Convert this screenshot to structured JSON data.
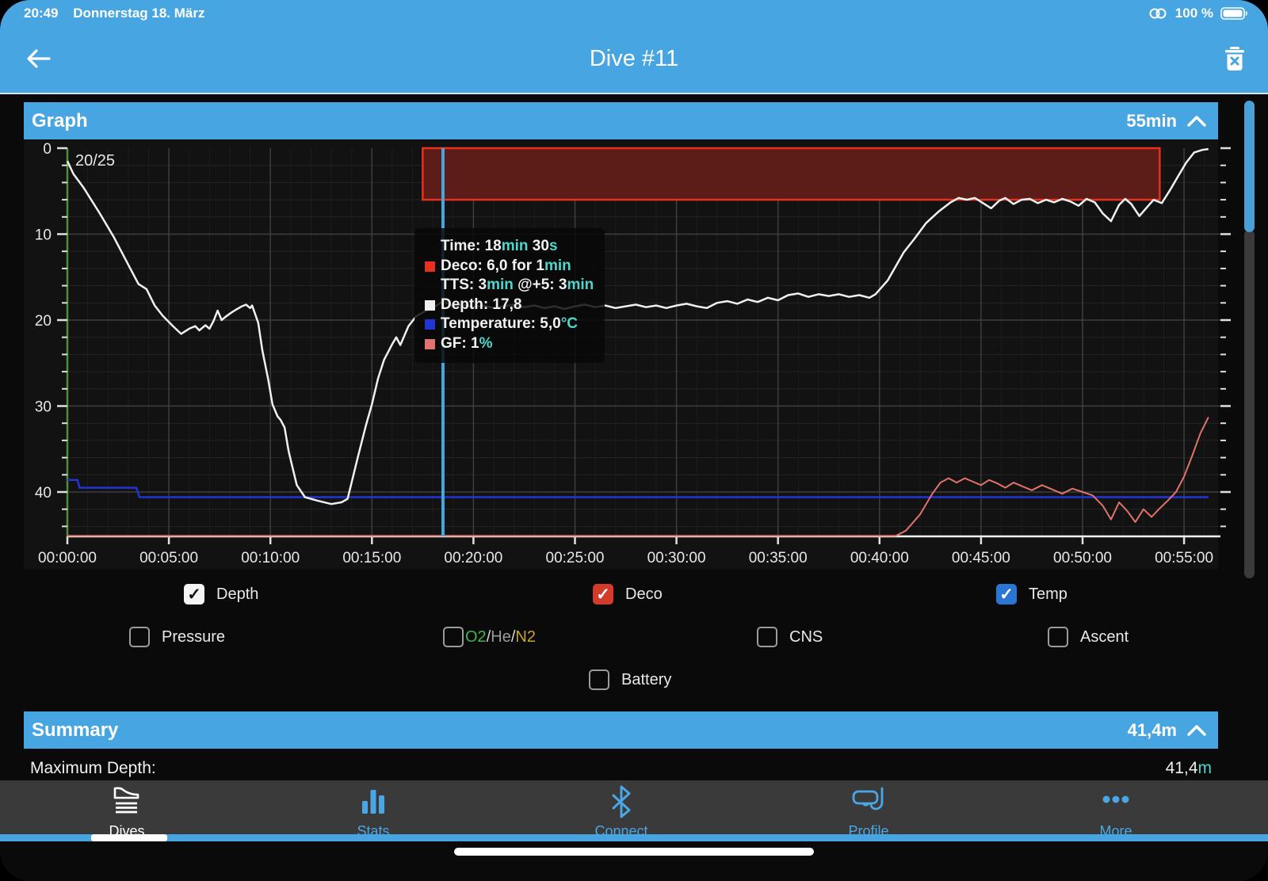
{
  "status_bar": {
    "time": "20:49",
    "date": "Donnerstag 18. März",
    "battery_label": "100 %"
  },
  "nav": {
    "title": "Dive #11"
  },
  "graph_panel": {
    "title": "Graph",
    "duration": "55min"
  },
  "summary_panel": {
    "title": "Summary",
    "value": "41,4m"
  },
  "summary_rows": [
    {
      "label": "Maximum Depth:",
      "value": "41,4",
      "unit": "m"
    }
  ],
  "tooltip": {
    "lines": [
      {
        "bullet": null,
        "indent": false,
        "parts": [
          [
            "Time: 18",
            "w"
          ],
          [
            "min",
            "c"
          ],
          [
            " 30",
            "w"
          ],
          [
            "s",
            "c"
          ]
        ]
      },
      {
        "bullet": "#e8301e",
        "indent": false,
        "parts": [
          [
            "Deco: 6,0 for 1",
            "w"
          ],
          [
            "min",
            "c"
          ]
        ]
      },
      {
        "bullet": null,
        "indent": true,
        "parts": [
          [
            "TTS: 3",
            "w"
          ],
          [
            "min",
            "c"
          ],
          [
            " @+5:  3",
            "w"
          ],
          [
            "min",
            "c"
          ]
        ]
      },
      {
        "bullet": "#f0f0f0",
        "indent": false,
        "parts": [
          [
            "Depth: 17,8",
            "w"
          ]
        ]
      },
      {
        "bullet": "#2135d4",
        "indent": false,
        "parts": [
          [
            "Temperature: 5,0",
            "w"
          ],
          [
            "°C",
            "c"
          ]
        ]
      },
      {
        "bullet": "#e0736b",
        "indent": false,
        "parts": [
          [
            "GF: 1",
            "w"
          ],
          [
            "%",
            "c"
          ]
        ]
      }
    ]
  },
  "legend": [
    {
      "id": "depth",
      "label": "Depth",
      "checked": true,
      "style": "white"
    },
    {
      "id": "deco",
      "label": "Deco",
      "checked": true,
      "style": "red"
    },
    {
      "id": "temp",
      "label": "Temp",
      "checked": true,
      "style": "blue"
    },
    {
      "id": "pressure",
      "label": "Pressure",
      "checked": false,
      "style": "off"
    },
    {
      "id": "gas",
      "label_parts": [
        [
          "O2",
          "#43b54a"
        ],
        [
          "/",
          "#d8d8d8"
        ],
        [
          "He",
          "#9a9a9a"
        ],
        [
          "/",
          "#d8d8d8"
        ],
        [
          "N2",
          "#c7a52c"
        ]
      ],
      "checked": false,
      "style": "off"
    },
    {
      "id": "cns",
      "label": "CNS",
      "checked": false,
      "style": "off"
    },
    {
      "id": "ascent",
      "label": "Ascent",
      "checked": false,
      "style": "off"
    },
    {
      "id": "battery",
      "label": "Battery",
      "checked": false,
      "style": "off"
    }
  ],
  "tab_bar": {
    "tabs": [
      {
        "id": "dives",
        "label": "Dives",
        "active": true
      },
      {
        "id": "stats",
        "label": "Stats",
        "active": false
      },
      {
        "id": "connect",
        "label": "Connect",
        "active": false
      },
      {
        "id": "profile",
        "label": "Profile",
        "active": false
      },
      {
        "id": "more",
        "label": "More",
        "active": false
      }
    ]
  },
  "chart_data": {
    "type": "line",
    "title": "Dive profile graph",
    "gas_label": "20/25",
    "x_axis": {
      "unit": "min",
      "min": 0,
      "max": 56.6,
      "major_tick_min": 5
    },
    "y_axis": {
      "unit": "m",
      "min": 0,
      "max": 45.2,
      "inverted": true,
      "major_tick_m": 10,
      "minor_tick_m": 2
    },
    "x_tick_labels": [
      "00:00:00",
      "00:05:00",
      "00:10:00",
      "00:15:00",
      "00:20:00",
      "00:25:00",
      "00:30:00",
      "00:35:00",
      "00:40:00",
      "00:45:00",
      "00:50:00",
      "00:55:00"
    ],
    "y_tick_labels": [
      0,
      10,
      20,
      30,
      40
    ],
    "cursor_min": 18.5,
    "deco_ceiling_band": {
      "start_min": 17.5,
      "end_min": 53.8,
      "depth_from_m": 0,
      "depth_to_m": 6
    },
    "colors": {
      "depth": "#f0f0f0",
      "temperature": "#2135d4",
      "gf": "#e0736b",
      "deco_fill": "#5c1c17",
      "deco_border": "#e8301e",
      "cursor": "#47a5e2",
      "y_axis_line": "#4e8f3c",
      "x_axis_line": "#f5f5f5",
      "grid_major": "#3e3e3e",
      "grid_minor_h": "#242424",
      "grid_minor_v": "#1d1d1d"
    },
    "series": [
      {
        "name": "Depth",
        "unit": "m",
        "points": [
          [
            0,
            1.5
          ],
          [
            0.3,
            3
          ],
          [
            0.8,
            4.6
          ],
          [
            1.6,
            7.6
          ],
          [
            2.3,
            10.4
          ],
          [
            3.1,
            14
          ],
          [
            3.5,
            15.8
          ],
          [
            3.9,
            16.4
          ],
          [
            4.3,
            18.3
          ],
          [
            4.7,
            19.5
          ],
          [
            5.2,
            20.7
          ],
          [
            5.6,
            21.6
          ],
          [
            6,
            21
          ],
          [
            6.3,
            20.7
          ],
          [
            6.5,
            21.2
          ],
          [
            6.8,
            20.6
          ],
          [
            7,
            21
          ],
          [
            7.2,
            20.1
          ],
          [
            7.4,
            18.9
          ],
          [
            7.6,
            20
          ],
          [
            7.8,
            19.6
          ],
          [
            8.1,
            19.1
          ],
          [
            8.3,
            18.8
          ],
          [
            8.6,
            18.4
          ],
          [
            8.8,
            18.2
          ],
          [
            9,
            18.6
          ],
          [
            9.1,
            18.3
          ],
          [
            9.4,
            20.3
          ],
          [
            9.6,
            23.5
          ],
          [
            9.9,
            27
          ],
          [
            10.1,
            29.8
          ],
          [
            10.35,
            31.2
          ],
          [
            10.5,
            31.6
          ],
          [
            10.7,
            32.5
          ],
          [
            10.9,
            35.3
          ],
          [
            11.3,
            39.2
          ],
          [
            11.7,
            40.6
          ],
          [
            12.3,
            41
          ],
          [
            13,
            41.4
          ],
          [
            13.5,
            41.2
          ],
          [
            13.8,
            40.8
          ],
          [
            14.3,
            36
          ],
          [
            14.7,
            32.3
          ],
          [
            15,
            29.8
          ],
          [
            15.3,
            26.8
          ],
          [
            15.6,
            24.6
          ],
          [
            16,
            22.8
          ],
          [
            16.2,
            22
          ],
          [
            16.4,
            22.9
          ],
          [
            16.8,
            20.7
          ],
          [
            17.2,
            19.5
          ],
          [
            17.6,
            19
          ],
          [
            18,
            18.6
          ],
          [
            18.5,
            17.8
          ],
          [
            19,
            18.4
          ],
          [
            19.5,
            18.2
          ],
          [
            20,
            18.5
          ],
          [
            20.5,
            18.3
          ],
          [
            21,
            18.6
          ],
          [
            21.5,
            18.4
          ],
          [
            22,
            18.2
          ],
          [
            22.5,
            18.5
          ],
          [
            23,
            18.3
          ],
          [
            23.5,
            18.6
          ],
          [
            24,
            18.4
          ],
          [
            24.5,
            18.7
          ],
          [
            25,
            18.4
          ],
          [
            25.5,
            18.2
          ],
          [
            26,
            18.5
          ],
          [
            26.5,
            18.3
          ],
          [
            27,
            18.6
          ],
          [
            27.5,
            18.4
          ],
          [
            28,
            18.2
          ],
          [
            28.5,
            18.5
          ],
          [
            29,
            18.3
          ],
          [
            29.5,
            18.6
          ],
          [
            30,
            18.3
          ],
          [
            30.5,
            18.1
          ],
          [
            31,
            18.4
          ],
          [
            31.5,
            18.6
          ],
          [
            32,
            18
          ],
          [
            32.5,
            17.8
          ],
          [
            33,
            18.1
          ],
          [
            33.5,
            17.6
          ],
          [
            34,
            17.9
          ],
          [
            34.5,
            17.4
          ],
          [
            35,
            17.7
          ],
          [
            35.5,
            17.1
          ],
          [
            36,
            16.9
          ],
          [
            36.5,
            17.3
          ],
          [
            37,
            17
          ],
          [
            37.5,
            17.2
          ],
          [
            38,
            17
          ],
          [
            38.5,
            17.3
          ],
          [
            39,
            17.1
          ],
          [
            39.5,
            17.4
          ],
          [
            39.8,
            17
          ],
          [
            40.4,
            15.4
          ],
          [
            41.2,
            12.1
          ],
          [
            41.7,
            10.6
          ],
          [
            42.3,
            8.7
          ],
          [
            42.9,
            7.4
          ],
          [
            43.5,
            6.3
          ],
          [
            43.9,
            5.8
          ],
          [
            44.3,
            6
          ],
          [
            44.7,
            5.8
          ],
          [
            45.1,
            6.4
          ],
          [
            45.5,
            7
          ],
          [
            45.9,
            6.1
          ],
          [
            46.2,
            5.8
          ],
          [
            46.6,
            6.5
          ],
          [
            47,
            6
          ],
          [
            47.4,
            5.9
          ],
          [
            47.8,
            6.4
          ],
          [
            48.2,
            6
          ],
          [
            48.6,
            6.3
          ],
          [
            49,
            5.9
          ],
          [
            49.4,
            6.2
          ],
          [
            49.8,
            6.7
          ],
          [
            50.2,
            5.9
          ],
          [
            50.6,
            6.3
          ],
          [
            51,
            7.6
          ],
          [
            51.4,
            8.5
          ],
          [
            51.8,
            6.6
          ],
          [
            52.1,
            5.9
          ],
          [
            52.4,
            6.5
          ],
          [
            52.8,
            7.9
          ],
          [
            53.2,
            6.8
          ],
          [
            53.5,
            6
          ],
          [
            53.9,
            6.4
          ],
          [
            54.3,
            4.9
          ],
          [
            54.7,
            3.3
          ],
          [
            55.1,
            1.7
          ],
          [
            55.5,
            0.5
          ],
          [
            55.9,
            0.2
          ],
          [
            56.2,
            0.1
          ]
        ]
      },
      {
        "name": "Temperature",
        "unit": "°C",
        "value_at_cursor": "5,0°C",
        "plotted_on": "depth_scale_m",
        "points": [
          [
            0,
            38.6
          ],
          [
            0.5,
            38.6
          ],
          [
            0.6,
            39.5
          ],
          [
            3.4,
            39.5
          ],
          [
            3.55,
            40.6
          ],
          [
            56.2,
            40.6
          ]
        ]
      },
      {
        "name": "GF",
        "unit": "%",
        "value_at_cursor": "1%",
        "plotted_on": "depth_scale_m",
        "points": [
          [
            0,
            45.1
          ],
          [
            40.8,
            45.1
          ],
          [
            41.3,
            44.5
          ],
          [
            42,
            42.6
          ],
          [
            42.6,
            40.2
          ],
          [
            43,
            38.9
          ],
          [
            43.4,
            38.4
          ],
          [
            43.8,
            38.9
          ],
          [
            44.2,
            38.4
          ],
          [
            44.6,
            38.8
          ],
          [
            45,
            39.2
          ],
          [
            45.4,
            38.6
          ],
          [
            45.8,
            39
          ],
          [
            46.2,
            39.5
          ],
          [
            46.6,
            38.9
          ],
          [
            47,
            39.3
          ],
          [
            47.5,
            39.8
          ],
          [
            48,
            39.2
          ],
          [
            48.5,
            39.7
          ],
          [
            49,
            40.2
          ],
          [
            49.5,
            39.6
          ],
          [
            50,
            40
          ],
          [
            50.5,
            40.4
          ],
          [
            51,
            41.6
          ],
          [
            51.4,
            43.2
          ],
          [
            51.8,
            41.2
          ],
          [
            52.2,
            42.2
          ],
          [
            52.6,
            43.5
          ],
          [
            53,
            42
          ],
          [
            53.4,
            42.9
          ],
          [
            53.8,
            41.9
          ],
          [
            54.2,
            41
          ],
          [
            54.6,
            40
          ],
          [
            55,
            38.2
          ],
          [
            55.4,
            35.8
          ],
          [
            55.8,
            33.2
          ],
          [
            56.2,
            31.3
          ]
        ]
      }
    ]
  }
}
